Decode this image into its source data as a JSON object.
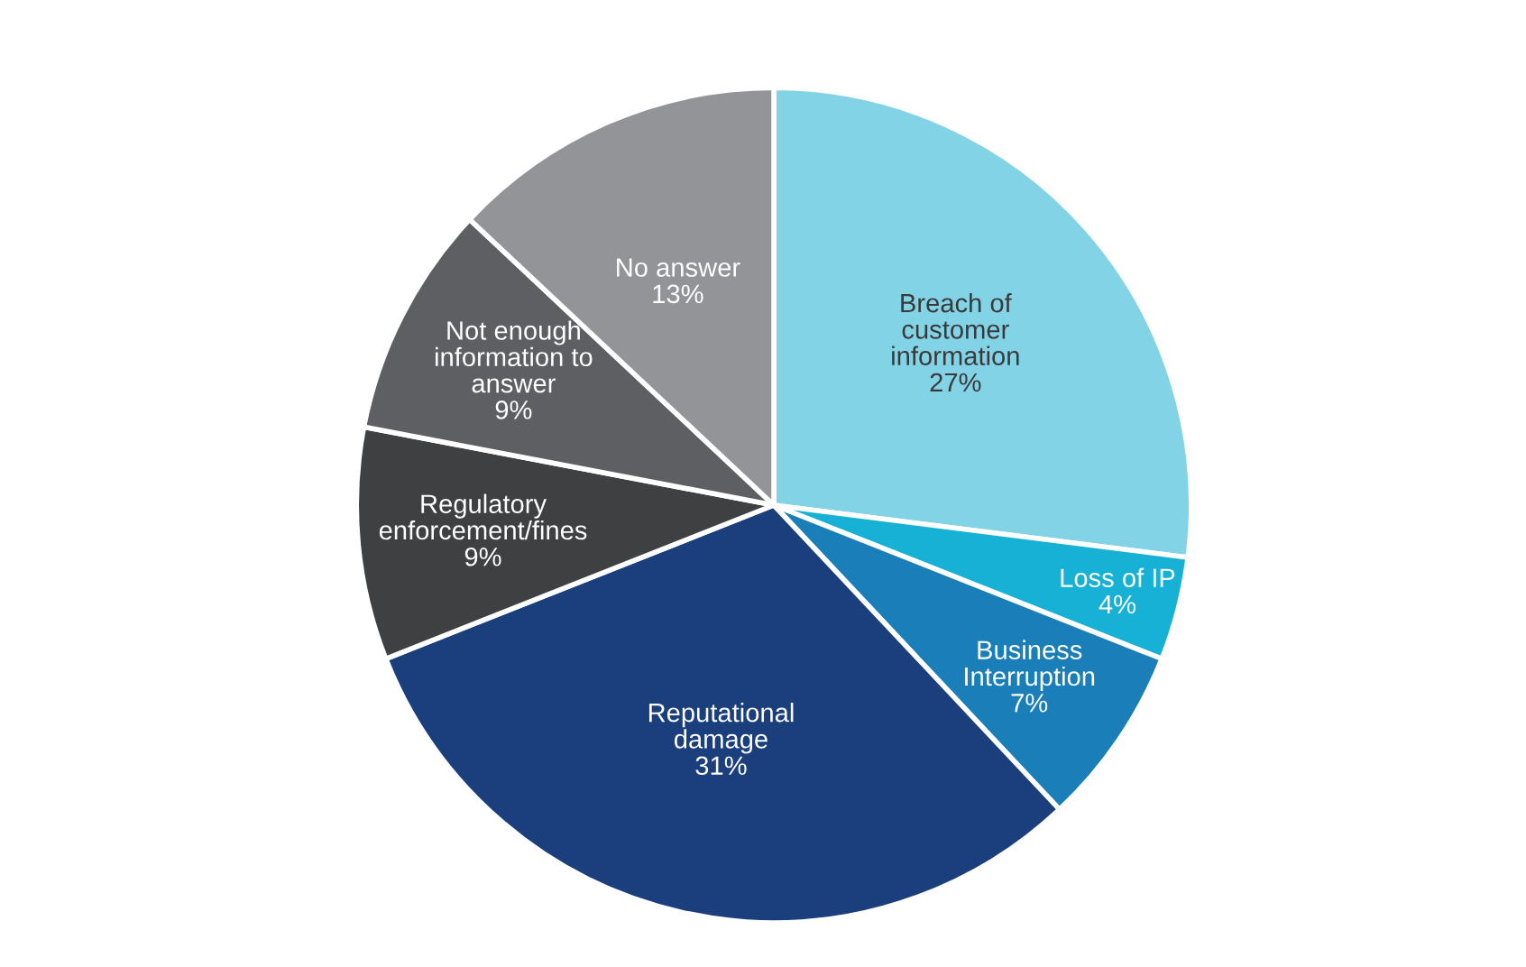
{
  "chart_data": {
    "type": "pie",
    "categories": [
      "Breach of\ncustomer\ninformation",
      "Loss of IP",
      "Business\nInterruption",
      "Reputational\ndamage",
      "Regulatory\nenforcement/fines",
      "Not enough\ninformation to\nanswer",
      "No answer"
    ],
    "values": [
      27,
      4,
      7,
      31,
      9,
      9,
      13
    ],
    "colors": [
      "#83d3e6",
      "#17b1d6",
      "#1a7fb9",
      "#1a3f7c",
      "#3f4042",
      "#5e5f62",
      "#929497"
    ],
    "value_labels": [
      "27%",
      "4%",
      "7%",
      "31%",
      "9%",
      "9%",
      "13%"
    ]
  }
}
